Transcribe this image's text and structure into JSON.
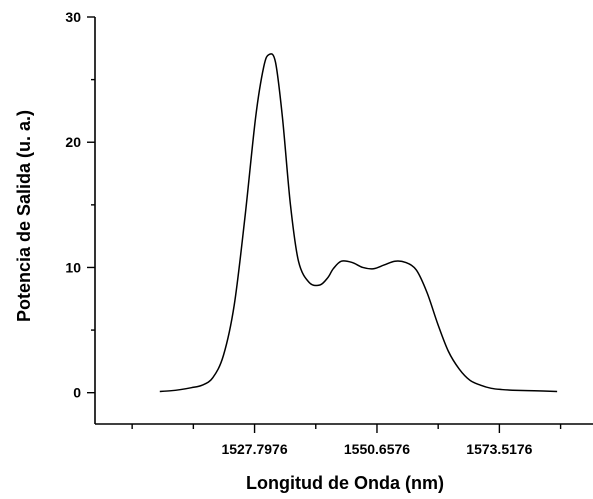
{
  "chart_data": {
    "type": "line",
    "xlabel": "Longitud de Onda (nm)",
    "ylabel": "Potencia de Salida (u. a.)",
    "xlim": [
      1498.0,
      1591.0
    ],
    "ylim": [
      -2.5,
      30
    ],
    "x_ticks": [
      1527.7976,
      1550.6576,
      1573.5176
    ],
    "x_tick_labels": [
      "1527.7976",
      "1550.6576",
      "1573.5176"
    ],
    "y_ticks": [
      0,
      10,
      20,
      30
    ],
    "y_tick_labels": [
      "0",
      "10",
      "20",
      "30"
    ],
    "grid": false,
    "series": [
      {
        "x": [
          1510.1,
          1512.0,
          1514.0,
          1516.0,
          1518.0,
          1520.0,
          1522.0,
          1524.0,
          1526.0,
          1528.0,
          1529.5,
          1530.5,
          1531.7,
          1533.0,
          1534.5,
          1536.0,
          1538.0,
          1540.0,
          1541.5,
          1542.5,
          1544.0,
          1546.0,
          1548.0,
          1550.0,
          1552.0,
          1554.0,
          1556.0,
          1558.0,
          1560.0,
          1562.0,
          1564.0,
          1566.0,
          1568.0,
          1570.0,
          1572.0,
          1574.0,
          1576.0,
          1580.0,
          1584.3
        ],
        "y": [
          0.1,
          0.15,
          0.25,
          0.4,
          0.6,
          1.2,
          3.0,
          7.0,
          14.0,
          22.0,
          26.0,
          27.0,
          26.4,
          22.0,
          15.0,
          10.5,
          8.8,
          8.6,
          9.2,
          9.9,
          10.5,
          10.4,
          10.0,
          9.9,
          10.2,
          10.5,
          10.4,
          9.8,
          8.0,
          5.5,
          3.3,
          1.9,
          1.0,
          0.6,
          0.35,
          0.25,
          0.2,
          0.15,
          0.1
        ]
      }
    ]
  }
}
